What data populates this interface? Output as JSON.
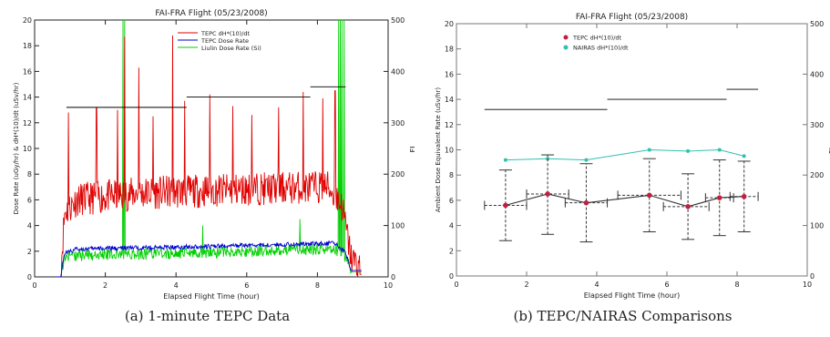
{
  "chart_data": [
    {
      "type": "line",
      "title": "FAI-FRA Flight (05/23/2008)",
      "caption": "(a) 1-minute TEPC Data",
      "xlabel": "Elapsed Flight Time (hour)",
      "ylabel": "Dose Rate (uGy/hr) & dH*(10)/dt (uSv/hr)",
      "y2label": "FL",
      "xlim": [
        0,
        10
      ],
      "ylim": [
        0,
        20
      ],
      "y2lim": [
        0,
        500
      ],
      "xticks": [
        "0",
        "2",
        "4",
        "6",
        "8",
        "10"
      ],
      "yticks": [
        "0",
        "2",
        "4",
        "6",
        "8",
        "10",
        "12",
        "14",
        "16",
        "18",
        "20"
      ],
      "y2ticks": [
        "0",
        "100",
        "200",
        "300",
        "400",
        "500"
      ],
      "legend_position": "top-center",
      "colors": {
        "tepc_h": "#e00000",
        "tepc_dose": "#0000d0",
        "liulin": "#00d000",
        "fl": "#000000"
      },
      "series": [
        {
          "name": "TEPC dH*(10)/dt",
          "color": "#e00000",
          "baseline_x": [
            0.75,
            0.85,
            1.2,
            3,
            5,
            7,
            8.3,
            8.7,
            8.95,
            9.2
          ],
          "baseline_y": [
            0.5,
            4.5,
            5.5,
            6.0,
            6.2,
            6.4,
            6.5,
            5.0,
            1.0,
            0.2
          ],
          "noise": 2.6,
          "spikes": [
            [
              0.95,
              12.8
            ],
            [
              1.75,
              13.2
            ],
            [
              2.35,
              13.0
            ],
            [
              2.55,
              18.7
            ],
            [
              2.95,
              16.3
            ],
            [
              3.35,
              12.5
            ],
            [
              3.9,
              18.8
            ],
            [
              4.25,
              13.7
            ],
            [
              4.95,
              14.2
            ],
            [
              5.6,
              13.3
            ],
            [
              6.15,
              12.6
            ],
            [
              6.9,
              13.2
            ],
            [
              7.6,
              14.4
            ],
            [
              8.15,
              13.9
            ],
            [
              8.5,
              14.5
            ]
          ]
        },
        {
          "name": "TEPC Dose Rate",
          "color": "#0000d0",
          "baseline_x": [
            0.75,
            0.85,
            1.2,
            3,
            5,
            7,
            8.5,
            8.8,
            8.95
          ],
          "baseline_y": [
            0.3,
            1.8,
            2.1,
            2.2,
            2.3,
            2.45,
            2.55,
            1.8,
            0.5
          ],
          "noise": 0.35,
          "spikes": []
        },
        {
          "name": "Liulin Dose Rate (Si)",
          "color": "#00d000",
          "baseline_x": [
            0.75,
            0.85,
            1.2,
            3,
            5,
            7,
            8.5,
            8.8,
            8.95
          ],
          "baseline_y": [
            0.2,
            1.4,
            1.5,
            1.6,
            1.7,
            1.9,
            2.0,
            1.4,
            0.4
          ],
          "noise": 0.9,
          "spikes": [
            [
              2.5,
              20.0
            ],
            [
              2.55,
              20.0
            ],
            [
              8.6,
              20.0
            ],
            [
              8.65,
              20.0
            ],
            [
              8.7,
              20.0
            ],
            [
              8.75,
              20.0
            ],
            [
              4.75,
              4.0
            ],
            [
              7.5,
              4.5
            ]
          ]
        },
        {
          "name": "FL",
          "axis": "y2",
          "color": "#000000",
          "segments": [
            [
              [
                0.9,
                4.3
              ],
              330
            ],
            [
              [
                4.3,
                7.8
              ],
              350
            ],
            [
              [
                7.8,
                8.8
              ],
              370
            ]
          ]
        }
      ]
    },
    {
      "type": "scatter",
      "title": "FAI-FRA Flight (05/23/2008)",
      "caption": "(b) TEPC/NAIRAS Comparisons",
      "xlabel": "Elapsed Flight Time (hour)",
      "ylabel": "Ambient Dose Equivalent Rate (uSv/hr)",
      "y2label": "FL",
      "xlim": [
        0,
        10
      ],
      "ylim": [
        0,
        20
      ],
      "y2lim": [
        0,
        500
      ],
      "xticks": [
        "0",
        "2",
        "4",
        "6",
        "8",
        "10"
      ],
      "yticks": [
        "0",
        "2",
        "4",
        "6",
        "8",
        "10",
        "12",
        "14",
        "16",
        "18",
        "20"
      ],
      "y2ticks": [
        "0",
        "100",
        "200",
        "300",
        "400",
        "500"
      ],
      "legend_position": "top-center",
      "colors": {
        "tepc": "#c02040",
        "nairas": "#30c0b0",
        "fl": "#000000"
      },
      "series": [
        {
          "name": "TEPC dH*(10)/dt",
          "color": "#c02040",
          "x": [
            1.4,
            2.6,
            3.7,
            5.5,
            6.6,
            7.5,
            8.2
          ],
          "y": [
            5.6,
            6.5,
            5.8,
            6.4,
            5.5,
            6.2,
            6.3
          ],
          "yerr_low": [
            2.8,
            3.3,
            2.7,
            3.5,
            2.9,
            3.2,
            3.5
          ],
          "yerr_high": [
            8.4,
            9.6,
            8.9,
            9.3,
            8.1,
            9.2,
            9.1
          ],
          "xerr_low": [
            0.8,
            2.0,
            3.1,
            4.6,
            5.9,
            7.1,
            7.8
          ],
          "xerr_high": [
            2.0,
            3.2,
            4.3,
            6.4,
            7.2,
            7.9,
            8.6
          ]
        },
        {
          "name": "NAIRAS dH*(10)/dt",
          "color": "#30c0b0",
          "x": [
            1.4,
            2.6,
            3.7,
            5.5,
            6.6,
            7.5,
            8.2
          ],
          "y": [
            9.2,
            9.3,
            9.2,
            10.0,
            9.9,
            10.0,
            9.5
          ]
        },
        {
          "name": "FL",
          "axis": "y2",
          "color": "#000000",
          "segments": [
            [
              [
                0.8,
                4.3
              ],
              330
            ],
            [
              [
                4.3,
                7.7
              ],
              350
            ],
            [
              [
                7.7,
                8.6
              ],
              370
            ]
          ]
        }
      ]
    }
  ]
}
